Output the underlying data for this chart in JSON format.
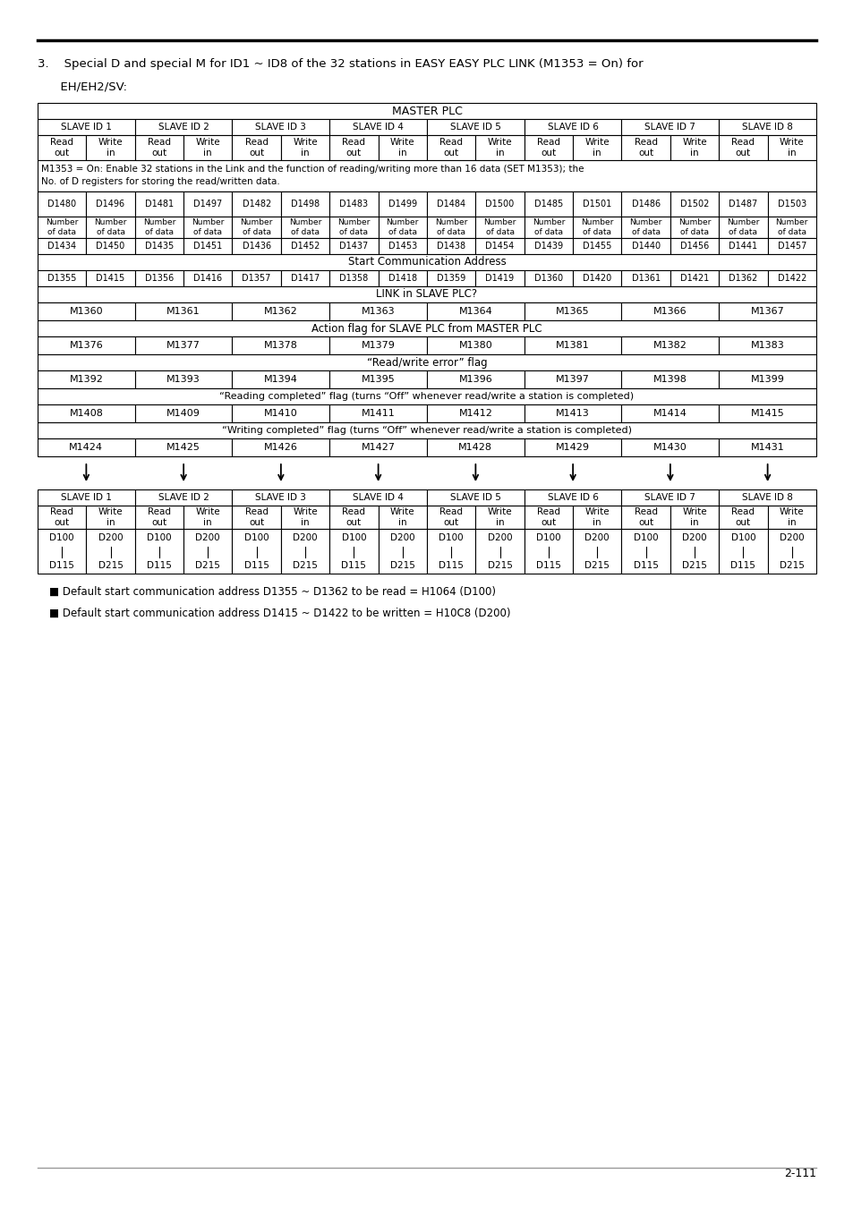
{
  "page_number": "2-111",
  "intro_line1": "3.    Special D and special M for ID1 ~ ID8 of the 32 stations in EASY EASY PLC LINK (M1353 = On) for",
  "intro_line2": "      EH/EH2/SV:",
  "note1": "■ Default start communication address D1355 ~ D1362 to be read = H1064 (D100)",
  "note2": "■ Default start communication address D1415 ~ D1422 to be written = H10C8 (D200)",
  "master_plc_title": "MASTER PLC",
  "slave_ids": [
    "SLAVE ID 1",
    "SLAVE ID 2",
    "SLAVE ID 3",
    "SLAVE ID 4",
    "SLAVE ID 5",
    "SLAVE ID 6",
    "SLAVE ID 7",
    "SLAVE ID 8"
  ],
  "m1353_note_line1": "M1353 = On: Enable 32 stations in the Link and the function of reading/writing more than 16 data (SET M1353); the",
  "m1353_note_line2": "No. of D registers for storing the read/written data.",
  "d_row1": [
    "D1480",
    "D1496",
    "D1481",
    "D1497",
    "D1482",
    "D1498",
    "D1483",
    "D1499",
    "D1484",
    "D1500",
    "D1485",
    "D1501",
    "D1486",
    "D1502",
    "D1487",
    "D1503"
  ],
  "d_row2": [
    "D1434",
    "D1450",
    "D1435",
    "D1451",
    "D1436",
    "D1452",
    "D1437",
    "D1453",
    "D1438",
    "D1454",
    "D1439",
    "D1455",
    "D1440",
    "D1456",
    "D1441",
    "D1457"
  ],
  "start_comm_addr": "Start Communication Address",
  "d_row3": [
    "D1355",
    "D1415",
    "D1356",
    "D1416",
    "D1357",
    "D1417",
    "D1358",
    "D1418",
    "D1359",
    "D1419",
    "D1360",
    "D1420",
    "D1361",
    "D1421",
    "D1362",
    "D1422"
  ],
  "link_slave": "LINK in SLAVE PLC?",
  "m_row1": [
    "M1360",
    "M1361",
    "M1362",
    "M1363",
    "M1364",
    "M1365",
    "M1366",
    "M1367"
  ],
  "action_flag": "Action flag for SLAVE PLC from MASTER PLC",
  "m_row2": [
    "M1376",
    "M1377",
    "M1378",
    "M1379",
    "M1380",
    "M1381",
    "M1382",
    "M1383"
  ],
  "rw_error": "“Read/write error” flag",
  "m_row3": [
    "M1392",
    "M1393",
    "M1394",
    "M1395",
    "M1396",
    "M1397",
    "M1398",
    "M1399"
  ],
  "reading_completed": "“Reading completed” flag (turns “Off” whenever read/write a station is completed)",
  "m_row4": [
    "M1408",
    "M1409",
    "M1410",
    "M1411",
    "M1412",
    "M1413",
    "M1414",
    "M1415"
  ],
  "writing_completed": "“Writing completed” flag (turns “Off” whenever read/write a station is completed)",
  "m_row5": [
    "M1424",
    "M1425",
    "M1426",
    "M1427",
    "M1428",
    "M1429",
    "M1430",
    "M1431"
  ],
  "slave_d_top": [
    "D100",
    "D200",
    "D100",
    "D200",
    "D100",
    "D200",
    "D100",
    "D200",
    "D100",
    "D200",
    "D100",
    "D200",
    "D100",
    "D200",
    "D100",
    "D200"
  ],
  "slave_d_bot": [
    "D115",
    "D215",
    "D115",
    "D215",
    "D115",
    "D215",
    "D115",
    "D215",
    "D115",
    "D215",
    "D115",
    "D215",
    "D115",
    "D215",
    "D115",
    "D215"
  ]
}
